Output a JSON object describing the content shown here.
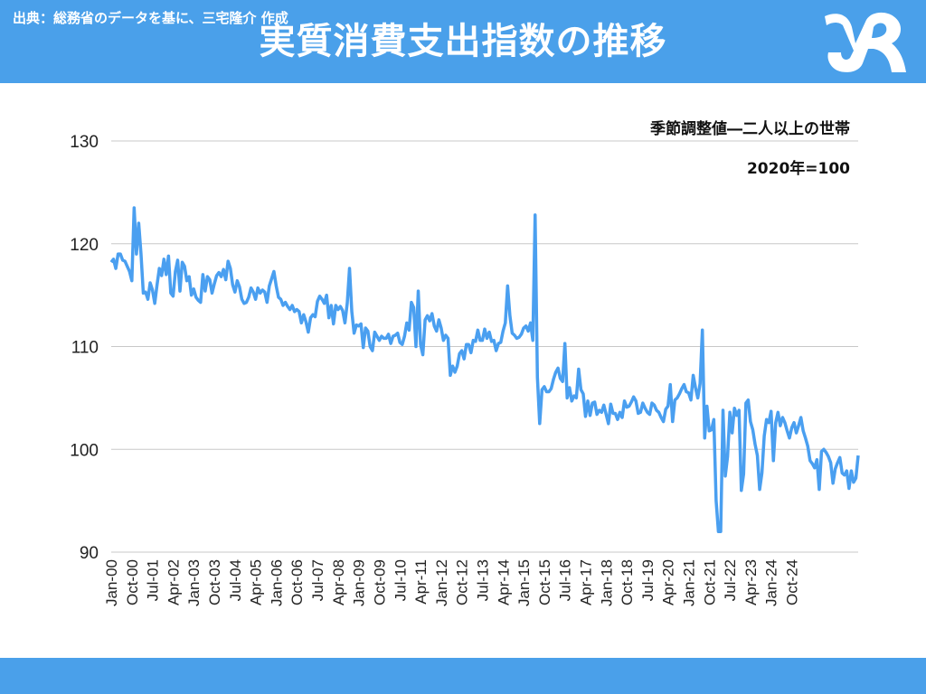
{
  "header": {
    "title": "実質消費支出指数の推移",
    "background": "#4aa0ea",
    "logo_icon": "mr-logo-icon"
  },
  "footer": {
    "source": "出典：総務省のデータを基に、三宅隆介 作成"
  },
  "notes": {
    "line1": "季節調整値―二人以上の世帯",
    "line2": "2020年=100"
  },
  "chart_data": {
    "type": "line",
    "color": "#4a9ff0",
    "grid": true,
    "ylim": [
      90,
      130
    ],
    "yticks": [
      "90",
      "100",
      "110",
      "120",
      "130"
    ],
    "x_start": "2000-01",
    "x_end": "2024-12",
    "xtick_labels": [
      "Jan-00",
      "Oct-00",
      "Jul-01",
      "Apr-02",
      "Jan-03",
      "Oct-03",
      "Jul-04",
      "Apr-05",
      "Jan-06",
      "Oct-06",
      "Jul-07",
      "Apr-08",
      "Jan-09",
      "Oct-09",
      "Jul-10",
      "Apr-11",
      "Jan-12",
      "Oct-12",
      "Jul-13",
      "Apr-14",
      "Jan-15",
      "Oct-15",
      "Jul-16",
      "Apr-17",
      "Jan-18",
      "Oct-18",
      "Jul-19",
      "Apr-20",
      "Jan-21",
      "Oct-21",
      "Jul-22",
      "Apr-23",
      "Jan-24",
      "Oct-24"
    ],
    "series": [
      {
        "values": [
          118.2,
          118.5,
          117.6,
          119.0,
          119.0,
          118.4,
          118.3,
          117.8,
          117.3,
          116.4,
          123.5,
          119.0,
          122.0,
          119.0,
          115.2,
          115.3,
          114.6,
          116.2,
          115.5,
          114.2,
          116.0,
          117.6,
          116.9,
          118.5,
          117.0,
          118.8,
          115.2,
          114.9,
          117.3,
          118.4,
          115.4,
          118.2,
          117.8,
          116.4,
          116.8,
          115.0,
          115.6,
          114.8,
          114.5,
          114.3,
          117.0,
          115.4,
          116.8,
          116.5,
          115.2,
          116.1,
          116.9,
          117.2,
          116.8,
          117.5,
          116.5,
          118.3,
          117.6,
          116.0,
          115.3,
          116.4,
          115.8,
          114.6,
          114.2,
          114.3,
          114.8,
          115.7,
          115.3,
          114.6,
          115.7,
          115.2,
          115.5,
          115.3,
          114.3,
          115.9,
          116.6,
          117.3,
          115.9,
          114.8,
          114.6,
          114.0,
          114.3,
          113.9,
          113.6,
          114.0,
          113.4,
          113.6,
          113.4,
          112.3,
          113.1,
          112.4,
          111.4,
          112.8,
          113.1,
          112.9,
          114.4,
          114.9,
          114.6,
          114.2,
          115.0,
          112.8,
          114.0,
          112.2,
          114.0,
          113.6,
          113.9,
          113.5,
          112.3,
          114.2,
          117.6,
          113.4,
          111.3,
          112.1,
          112.0,
          112.2,
          109.9,
          111.8,
          111.5,
          110.0,
          109.6,
          111.4,
          111.0,
          110.6,
          111.0,
          110.8,
          110.8,
          111.2,
          110.3,
          111.0,
          111.1,
          111.3,
          110.4,
          110.2,
          111.0,
          112.3,
          111.6,
          114.3,
          113.8,
          110.0,
          115.4,
          110.2,
          109.2,
          112.6,
          113.0,
          112.5,
          113.2,
          112.0,
          111.5,
          112.6,
          111.8,
          110.6,
          111.1,
          110.8,
          107.2,
          108.1,
          107.5,
          108.1,
          109.3,
          109.6,
          108.8,
          110.2,
          110.2,
          109.4,
          110.6,
          110.5,
          111.6,
          110.6,
          110.6,
          111.7,
          110.8,
          111.4,
          110.5,
          110.6,
          109.6,
          110.3,
          110.4,
          111.5,
          112.3,
          115.9,
          113.0,
          111.3,
          111.1,
          110.8,
          110.9,
          111.2,
          111.8,
          112.0,
          111.5,
          112.3,
          110.6,
          122.8,
          107.0,
          102.5,
          105.8,
          106.1,
          105.6,
          105.6,
          105.9,
          106.8,
          107.5,
          107.9,
          106.9,
          106.6,
          110.3,
          105.0,
          106.0,
          104.7,
          105.2,
          105.0,
          107.8,
          105.8,
          105.4,
          103.2,
          104.7,
          103.3,
          104.5,
          104.6,
          103.4,
          103.8,
          103.6,
          104.3,
          103.4,
          102.5,
          104.4,
          103.5,
          103.5,
          102.9,
          103.6,
          103.1,
          104.7,
          104.1,
          104.2,
          104.6,
          105.1,
          104.7,
          103.5,
          103.6,
          104.5,
          104.0,
          103.6,
          103.4,
          104.5,
          104.3,
          103.8,
          103.6,
          103.1,
          102.7,
          103.9,
          104.2,
          106.3,
          102.7,
          104.8,
          105.0,
          105.4,
          105.9,
          106.3,
          105.6,
          105.5,
          104.8,
          107.2,
          106.0,
          105.0,
          106.4,
          111.6,
          101.1,
          104.2,
          101.8,
          101.9,
          102.9,
          95.0,
          92.0,
          92.0,
          103.8,
          97.4,
          99.3,
          103.6,
          101.6,
          104.0,
          103.3,
          103.8,
          96.0,
          97.6,
          104.5,
          104.8,
          102.7,
          101.9,
          100.5,
          99.4,
          96.1,
          97.7,
          101.3,
          102.9,
          102.6,
          103.7,
          98.9,
          102.6,
          103.6,
          102.3,
          103.1,
          102.6,
          101.8,
          101.1,
          102.1,
          102.6,
          101.6,
          102.3,
          103.1,
          101.8,
          101.1,
          100.3,
          98.9,
          98.6,
          98.2,
          99.0,
          96.1,
          99.8,
          100.0,
          99.7,
          99.3,
          98.7,
          96.7,
          98.1,
          98.7,
          99.2,
          97.7,
          97.5,
          97.9,
          96.2,
          97.9,
          96.8,
          97.2,
          99.4
        ]
      }
    ]
  }
}
